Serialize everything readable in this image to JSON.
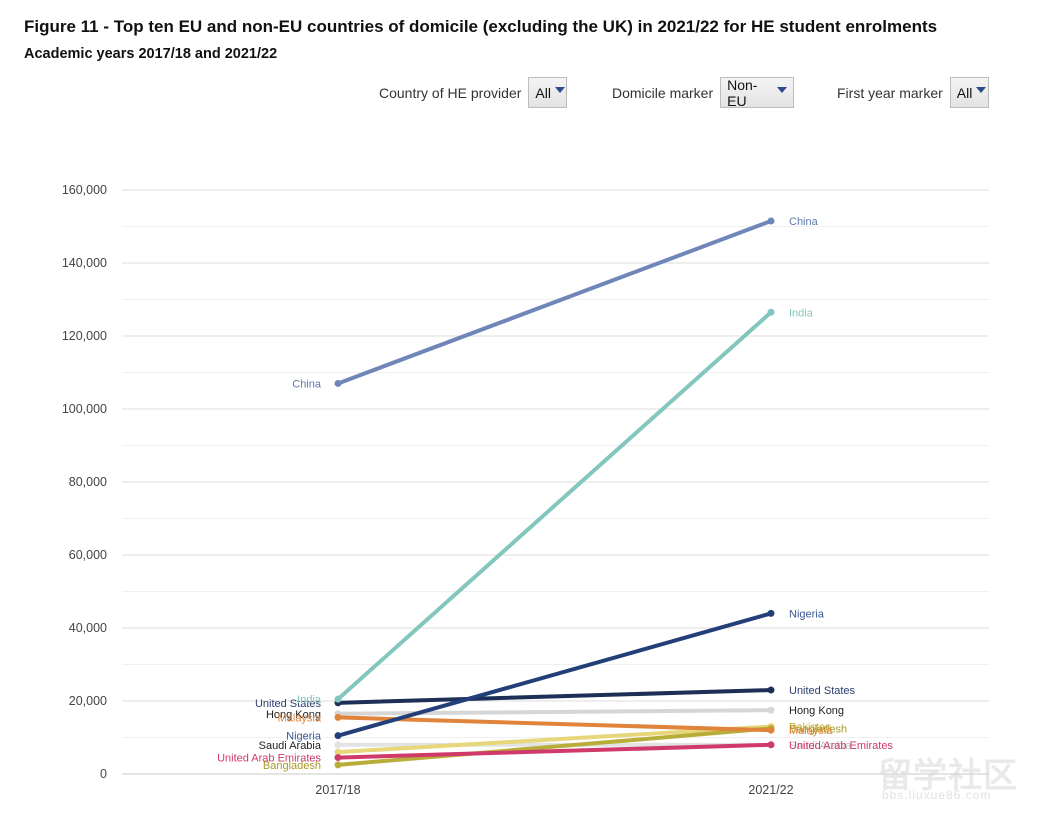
{
  "title": "Figure 11 - Top ten EU and non-EU countries of domicile (excluding the UK) in 2021/22 for HE student enrolments",
  "subtitle": "Academic years 2017/18 and 2021/22",
  "filters": [
    {
      "label": "Country of HE provider",
      "value": "All"
    },
    {
      "label": "Domicile marker",
      "value": "Non-EU"
    },
    {
      "label": "First year marker",
      "value": "All"
    }
  ],
  "watermark": {
    "text": "留学社区",
    "sub": "bbs.liuxue86.com"
  },
  "chart_data": {
    "type": "line",
    "x": [
      "2017/18",
      "2021/22"
    ],
    "ylim": [
      0,
      160000
    ],
    "yticks": [
      0,
      20000,
      40000,
      60000,
      80000,
      100000,
      120000,
      140000,
      160000
    ],
    "ytick_labels": [
      "0",
      "20,000",
      "40,000",
      "60,000",
      "80,000",
      "100,000",
      "120,000",
      "140,000",
      "160,000"
    ],
    "grid": true,
    "series": [
      {
        "name": "Saudi Arabia",
        "color": "#e3e3e3",
        "values": [
          8000,
          8000
        ],
        "labels": [
          "Saudi Arabia",
          "Saudi Arabia"
        ],
        "label_colors": [
          "#222222",
          "#bbbbbb"
        ]
      },
      {
        "name": "Hong Kong",
        "color": "#d6d6d6",
        "values": [
          16500,
          17500
        ],
        "labels": [
          "Hong Kong",
          "Hong Kong"
        ],
        "label_colors": [
          "#222222",
          "#222222"
        ]
      },
      {
        "name": "Pakistan",
        "color": "#e8d77a",
        "values": [
          6000,
          13000
        ],
        "labels": [
          "",
          "Pakistan"
        ],
        "label_colors": [
          "#c9b13a",
          "#c9b13a"
        ]
      },
      {
        "name": "Bangladesh",
        "color": "#b9ad3a",
        "values": [
          2500,
          12500
        ],
        "labels": [
          "Bangladesh",
          "Bangladesh"
        ],
        "label_colors": [
          "#a89a28",
          "#a89a28"
        ]
      },
      {
        "name": "United Arab Emirates",
        "color": "#cf3a6a",
        "values": [
          4500,
          8000
        ],
        "labels": [
          "United Arab Emirates",
          "United Arab Emirates"
        ],
        "label_colors": [
          "#cf3a6a",
          "#cf3a6a"
        ]
      },
      {
        "name": "Malaysia",
        "color": "#e0843c",
        "values": [
          15500,
          12000
        ],
        "labels": [
          "Malaysia",
          "Malaysia"
        ],
        "label_colors": [
          "#e0843c",
          "#e0843c"
        ]
      },
      {
        "name": "United States",
        "color": "#1d2f57",
        "values": [
          19500,
          23000
        ],
        "labels": [
          "United States",
          "United States"
        ],
        "label_colors": [
          "#2a3f70",
          "#2a3f70"
        ]
      },
      {
        "name": "Nigeria",
        "color": "#233f78",
        "values": [
          10500,
          44000
        ],
        "labels": [
          "Nigeria",
          "Nigeria"
        ],
        "label_colors": [
          "#3a5894",
          "#3a5894"
        ]
      },
      {
        "name": "India",
        "color": "#82c6bd",
        "values": [
          20500,
          126500
        ],
        "labels": [
          "India",
          "India"
        ],
        "label_colors": [
          "#82c6bd",
          "#82c6bd"
        ]
      },
      {
        "name": "China",
        "color": "#6f86bb",
        "values": [
          107000,
          151500
        ],
        "labels": [
          "China",
          "China"
        ],
        "label_colors": [
          "#5f78b0",
          "#5f78b0"
        ]
      }
    ]
  }
}
